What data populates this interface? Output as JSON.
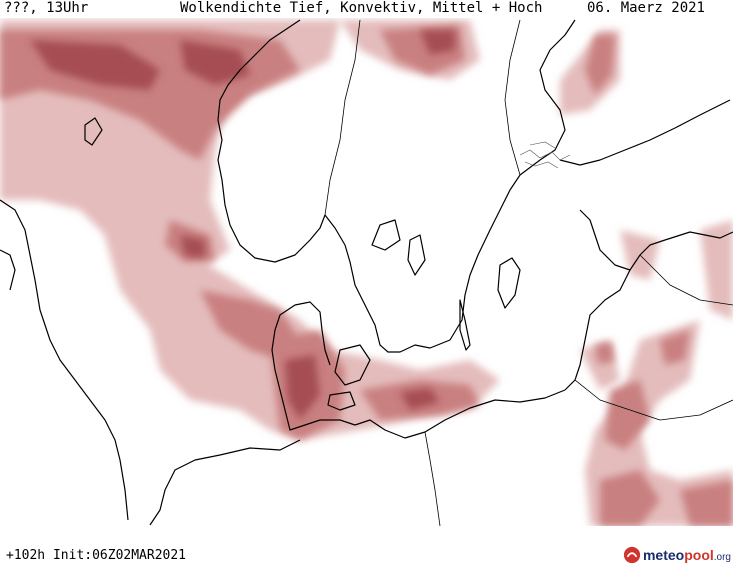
{
  "header": {
    "run_label": "???, 13Uhr",
    "title": "Wolkendichte  Tief, Konvektiv, Mittel + Hoch",
    "date": "06. Maerz 2021"
  },
  "footer": {
    "forecast": "+102h Init:06Z02MAR2021"
  },
  "logo": {
    "part1": "meteo",
    "part2": "pool",
    "part3": ".org"
  },
  "colors": {
    "cloud_light": "#e4bcbc",
    "cloud_mid": "#c98080",
    "cloud_dark": "#a54e52",
    "coast": "#000000",
    "logo_blue": "#1a2d6b",
    "logo_red": "#d0342c"
  },
  "icons": [
    "meteopool-logo-icon"
  ]
}
